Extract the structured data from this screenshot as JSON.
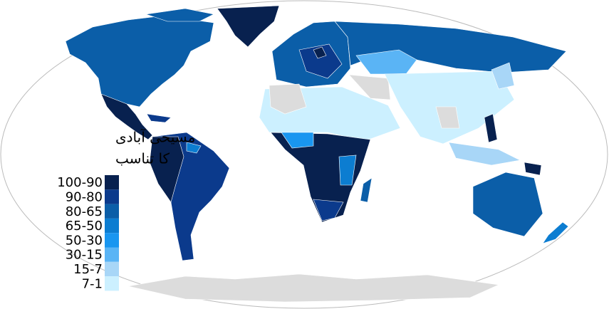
{
  "legend": {
    "title": [
      "مسیحی آبادی",
      "کا تناسب"
    ],
    "items": [
      {
        "label": "100-90",
        "color": "#08214f"
      },
      {
        "label": "90-80",
        "color": "#0b3a8c"
      },
      {
        "label": "80-65",
        "color": "#0b5ea8"
      },
      {
        "label": "65-50",
        "color": "#0c7dd1"
      },
      {
        "label": "50-30",
        "color": "#1996f0"
      },
      {
        "label": "30-15",
        "color": "#5ab4f5"
      },
      {
        "label": "15-7",
        "color": "#a8d6f7"
      },
      {
        "label": "7-1",
        "color": "#ccf0ff"
      }
    ]
  }
}
